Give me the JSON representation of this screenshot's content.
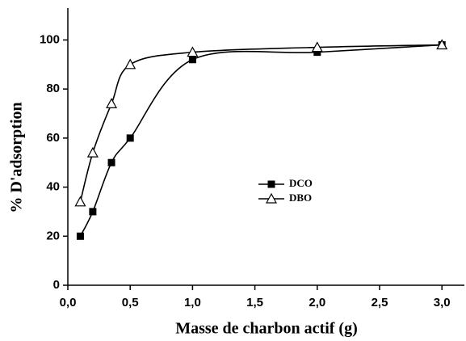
{
  "chart_data": {
    "type": "scatter",
    "x_label": "Masse de charbon actif (g)",
    "y_label": "% D'adsorption",
    "xlim": [
      0,
      3.18
    ],
    "ylim": [
      0,
      113
    ],
    "xticks": [
      {
        "value": 0,
        "label": "0,0"
      },
      {
        "value": 0.5,
        "label": "0,5"
      },
      {
        "value": 1,
        "label": "1,0"
      },
      {
        "value": 1.5,
        "label": "1,5"
      },
      {
        "value": 2,
        "label": "2,0"
      },
      {
        "value": 2.5,
        "label": "2,5"
      },
      {
        "value": 3,
        "label": "3,0"
      }
    ],
    "yticks": [
      0,
      20,
      40,
      60,
      80,
      100
    ],
    "series": [
      {
        "name": "DCO",
        "color": "#000000",
        "marker": "square",
        "x": [
          0.1,
          0.2,
          0.35,
          0.5,
          1.0,
          2.0,
          3.0
        ],
        "values": [
          20,
          30,
          50,
          60,
          92,
          95,
          98
        ]
      },
      {
        "name": "DBO",
        "color": "#000000",
        "marker": "triangle",
        "x": [
          0.1,
          0.2,
          0.35,
          0.5,
          1.0,
          2.0,
          3.0
        ],
        "values": [
          34,
          54,
          74,
          90,
          95,
          97,
          98
        ]
      }
    ]
  }
}
